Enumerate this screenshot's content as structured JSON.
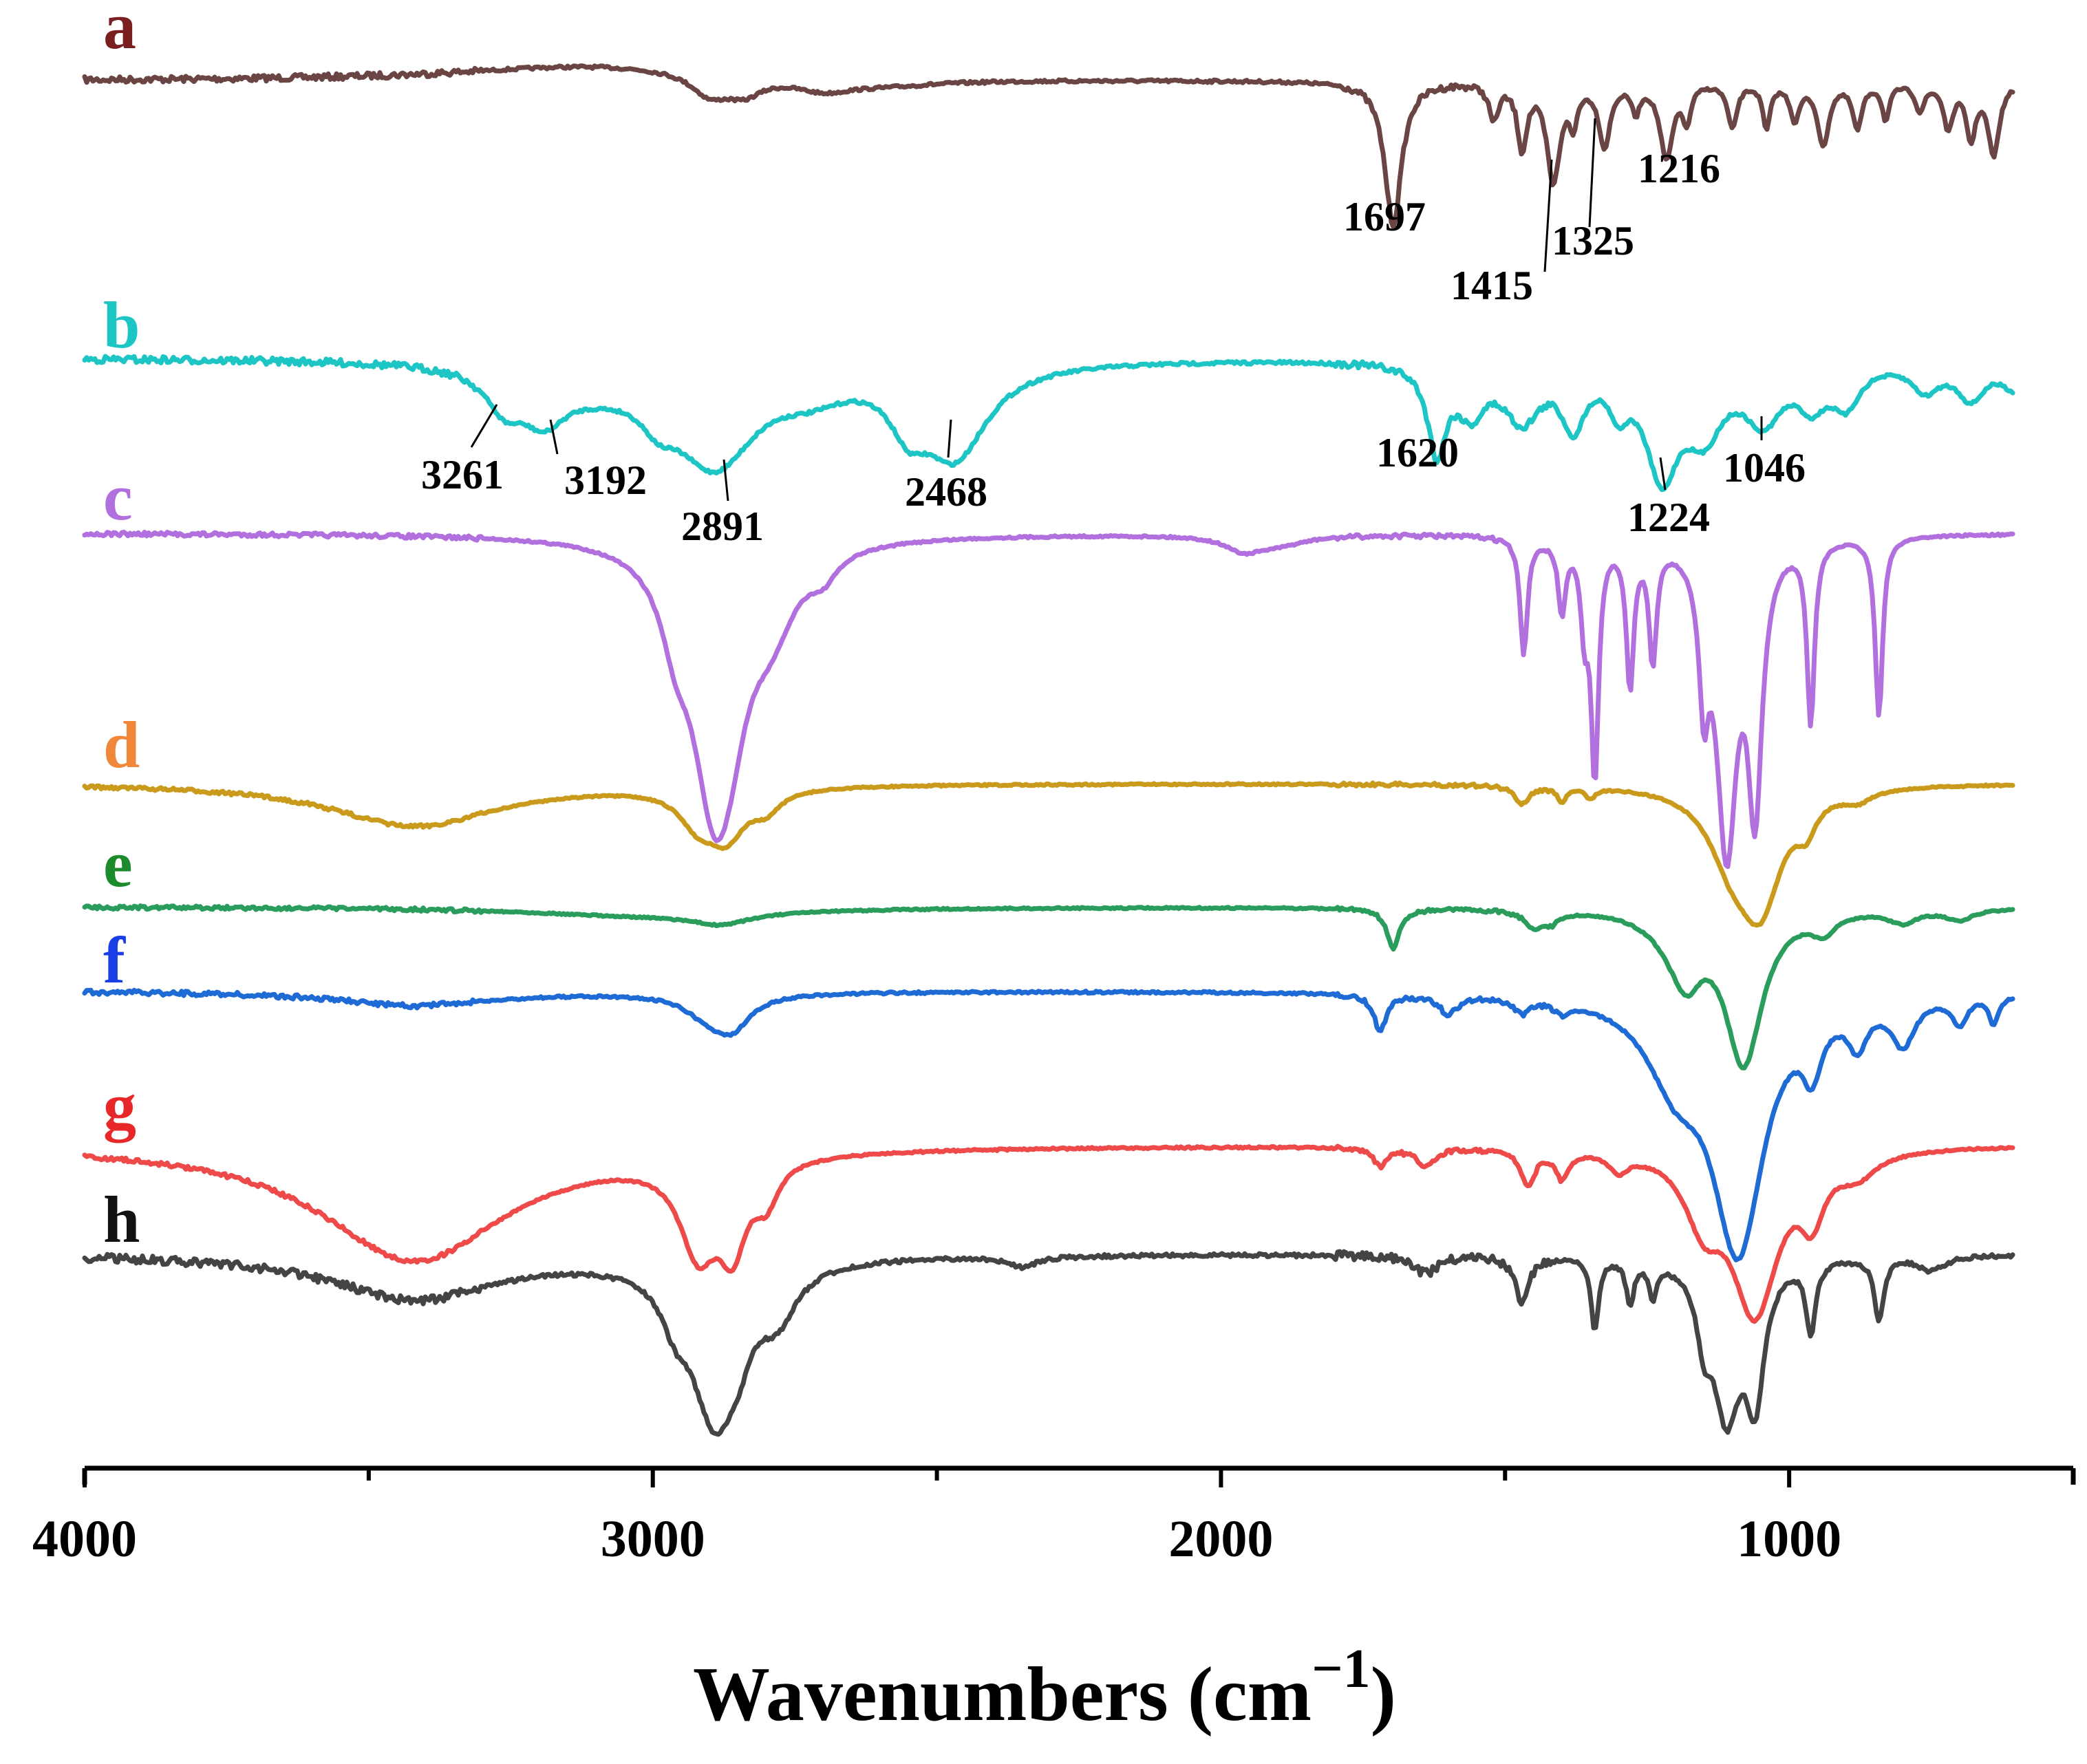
{
  "chart_data": {
    "type": "line",
    "title": "",
    "xlabel": "Wavenumbers (cm",
    "xlabel_sup": "−1",
    "xlabel_close": ")",
    "ylabel": "",
    "xlim": [
      4000,
      500
    ],
    "x_ticks": [
      4000,
      3000,
      2000,
      1000
    ],
    "x_tick_labels": [
      "4000",
      "3000",
      "2000",
      "1000"
    ],
    "grid": false,
    "legend": "inline letters at left of each trace",
    "series": [
      {
        "name": "a",
        "color": "#6b4444",
        "label_color": "#7a1f1f",
        "baseline": 0.0,
        "noise": 0.9,
        "features": [
          [
            3100,
            300,
            -0.9
          ],
          [
            2600,
            140,
            0.4
          ],
          [
            2900,
            40,
            1.2
          ],
          [
            2840,
            40,
            1.0
          ],
          [
            2700,
            60,
            0.6
          ],
          [
            1697,
            18,
            8.0
          ],
          [
            1520,
            10,
            2.0
          ],
          [
            1470,
            10,
            3.5
          ],
          [
            1415,
            14,
            5.5
          ],
          [
            1380,
            8,
            2.0
          ],
          [
            1325,
            12,
            3.5
          ],
          [
            1270,
            8,
            1.5
          ],
          [
            1216,
            14,
            4.2
          ],
          [
            1180,
            8,
            2.0
          ],
          [
            1100,
            10,
            2.5
          ],
          [
            1040,
            8,
            2.5
          ],
          [
            990,
            10,
            2.0
          ],
          [
            940,
            12,
            3.5
          ],
          [
            880,
            10,
            2.5
          ],
          [
            830,
            8,
            2.0
          ],
          [
            770,
            10,
            1.5
          ],
          [
            720,
            10,
            2.5
          ],
          [
            680,
            10,
            3.0
          ],
          [
            640,
            12,
            4.0
          ]
        ]
      },
      {
        "name": "b",
        "color": "#1dc5c5",
        "label_color": "#1dc5c5",
        "baseline": 0.0,
        "noise": 1.0,
        "features": [
          [
            3261,
            40,
            2.0
          ],
          [
            3192,
            50,
            2.5
          ],
          [
            3100,
            100,
            1.0
          ],
          [
            2891,
            90,
            5.5
          ],
          [
            2990,
            40,
            1.5
          ],
          [
            2720,
            80,
            1.2
          ],
          [
            2550,
            40,
            2.5
          ],
          [
            2468,
            70,
            5.0
          ],
          [
            1620,
            20,
            4.8
          ],
          [
            1560,
            30,
            2.5
          ],
          [
            1470,
            40,
            3.0
          ],
          [
            1380,
            25,
            3.2
          ],
          [
            1300,
            20,
            2.0
          ],
          [
            1224,
            35,
            6.0
          ],
          [
            1150,
            40,
            3.5
          ],
          [
            1046,
            40,
            3.0
          ],
          [
            960,
            30,
            2.0
          ],
          [
            900,
            30,
            2.2
          ],
          [
            760,
            30,
            1.5
          ],
          [
            680,
            30,
            2.0
          ],
          [
            600,
            30,
            1.5
          ]
        ]
      },
      {
        "name": "c",
        "color": "#b26fde",
        "label_color": "#b26fde",
        "baseline": 0.0,
        "noise": 0.6,
        "features": [
          [
            2960,
            30,
            3.0
          ],
          [
            2891,
            50,
            14.0
          ],
          [
            2860,
            40,
            3.0
          ],
          [
            2790,
            50,
            3.5
          ],
          [
            2700,
            30,
            1.2
          ],
          [
            1960,
            40,
            0.8
          ],
          [
            1467,
            8,
            6.5
          ],
          [
            1400,
            8,
            4.0
          ],
          [
            1360,
            8,
            4.5
          ],
          [
            1342,
            8,
            13.0
          ],
          [
            1280,
            8,
            8.0
          ],
          [
            1240,
            8,
            6.5
          ],
          [
            1150,
            10,
            7.0
          ],
          [
            1110,
            22,
            17.0
          ],
          [
            1060,
            15,
            14.0
          ],
          [
            962,
            8,
            10.0
          ],
          [
            842,
            8,
            10.0
          ],
          [
            1900,
            60,
            0.5
          ]
        ]
      },
      {
        "name": "d",
        "color": "#c99a1c",
        "label_color": "#f0873a",
        "baseline": 0.0,
        "noise": 0.5,
        "features": [
          [
            3420,
            180,
            2.4
          ],
          [
            2920,
            40,
            1.8
          ],
          [
            2870,
            40,
            2.5
          ],
          [
            2800,
            30,
            1.0
          ],
          [
            1470,
            15,
            1.0
          ],
          [
            1400,
            10,
            0.8
          ],
          [
            1350,
            10,
            0.6
          ],
          [
            1100,
            50,
            3.5
          ],
          [
            1050,
            45,
            6.0
          ],
          [
            970,
            20,
            1.5
          ],
          [
            880,
            30,
            0.6
          ]
        ]
      },
      {
        "name": "e",
        "color": "#2a9d5c",
        "label_color": "#1e8a2e",
        "baseline": 0.0,
        "noise": 0.5,
        "features": [
          [
            3000,
            260,
            0.5
          ],
          [
            2880,
            60,
            0.6
          ],
          [
            1697,
            14,
            2.2
          ],
          [
            1450,
            20,
            0.8
          ],
          [
            1420,
            20,
            0.6
          ],
          [
            1200,
            50,
            1.5
          ],
          [
            1080,
            40,
            8.5
          ],
          [
            1180,
            30,
            2.5
          ],
          [
            940,
            25,
            1.0
          ],
          [
            800,
            30,
            0.7
          ],
          [
            700,
            30,
            0.6
          ]
        ]
      },
      {
        "name": "f",
        "color": "#1f6bd6",
        "label_color": "#1a3ee6",
        "baseline": 0.0,
        "noise": 0.7,
        "features": [
          [
            3420,
            180,
            0.8
          ],
          [
            2900,
            50,
            1.2
          ],
          [
            2860,
            40,
            1.6
          ],
          [
            1720,
            14,
            2.0
          ],
          [
            1600,
            20,
            1.0
          ],
          [
            1470,
            15,
            0.8
          ],
          [
            1400,
            15,
            0.6
          ],
          [
            1200,
            60,
            4.0
          ],
          [
            1090,
            55,
            14.0
          ],
          [
            960,
            20,
            3.0
          ],
          [
            880,
            20,
            2.2
          ],
          [
            800,
            25,
            2.5
          ],
          [
            700,
            15,
            1.5
          ],
          [
            640,
            10,
            1.5
          ]
        ]
      },
      {
        "name": "g",
        "color": "#ee4a4a",
        "label_color": "#e82828",
        "baseline": 0.0,
        "noise": 0.6,
        "features": [
          [
            3420,
            200,
            6.5
          ],
          [
            2920,
            40,
            5.0
          ],
          [
            2860,
            30,
            4.5
          ],
          [
            2800,
            25,
            2.0
          ],
          [
            1720,
            15,
            1.0
          ],
          [
            1640,
            20,
            1.0
          ],
          [
            1460,
            15,
            2.0
          ],
          [
            1400,
            15,
            1.5
          ],
          [
            1300,
            20,
            1.0
          ],
          [
            1150,
            40,
            3.5
          ],
          [
            1060,
            50,
            9.0
          ],
          [
            960,
            25,
            3.0
          ],
          [
            880,
            40,
            1.2
          ]
        ]
      },
      {
        "name": "h",
        "color": "#444444",
        "label_color": "#111111",
        "baseline": 0.0,
        "noise": 1.2,
        "features": [
          [
            3420,
            180,
            2.5
          ],
          [
            2960,
            30,
            2.0
          ],
          [
            2891,
            50,
            8.5
          ],
          [
            2850,
            30,
            2.0
          ],
          [
            2780,
            40,
            2.5
          ],
          [
            2350,
            30,
            0.6
          ],
          [
            1640,
            25,
            1.0
          ],
          [
            1470,
            15,
            2.5
          ],
          [
            1342,
            8,
            4.0
          ],
          [
            1280,
            8,
            2.5
          ],
          [
            1240,
            8,
            2.0
          ],
          [
            1150,
            15,
            3.0
          ],
          [
            1110,
            30,
            8.5
          ],
          [
            1060,
            20,
            7.0
          ],
          [
            962,
            10,
            4.0
          ],
          [
            842,
            10,
            3.5
          ],
          [
            750,
            30,
            0.8
          ]
        ]
      }
    ],
    "annotations": [
      {
        "series": "a",
        "label": "1697"
      },
      {
        "series": "a",
        "label": "1415"
      },
      {
        "series": "a",
        "label": "1325"
      },
      {
        "series": "a",
        "label": "1216"
      },
      {
        "series": "b",
        "label": "3261"
      },
      {
        "series": "b",
        "label": "3192"
      },
      {
        "series": "b",
        "label": "2891"
      },
      {
        "series": "b",
        "label": "2468"
      },
      {
        "series": "b",
        "label": "1620"
      },
      {
        "series": "b",
        "label": "1224"
      },
      {
        "series": "b",
        "label": "1046"
      }
    ]
  }
}
